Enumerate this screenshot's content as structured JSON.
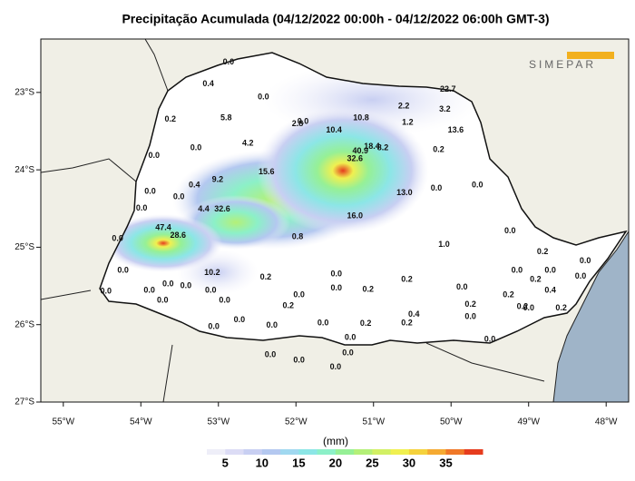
{
  "title": "Precipitação Acumulada (04/12/2022 00:00h - 04/12/2022 06:00h GMT-3)",
  "logo": "SIMEPAR",
  "map": {
    "xlim": [
      -55.29,
      -47.71
    ],
    "ylim": [
      -27,
      -22.31
    ],
    "xticks": [
      {
        "value": -55,
        "label": "55°W"
      },
      {
        "value": -54,
        "label": "54°W"
      },
      {
        "value": -53,
        "label": "53°W"
      },
      {
        "value": -52,
        "label": "52°W"
      },
      {
        "value": -51,
        "label": "51°W"
      },
      {
        "value": -50,
        "label": "50°W"
      },
      {
        "value": -49,
        "label": "49°W"
      },
      {
        "value": -48,
        "label": "48°W"
      }
    ],
    "yticks": [
      {
        "value": -23,
        "label": "23°S"
      },
      {
        "value": -24,
        "label": "24°S"
      },
      {
        "value": -25,
        "label": "25°S"
      },
      {
        "value": -26,
        "label": "26°S"
      },
      {
        "value": -27,
        "label": "27°S"
      }
    ],
    "stations": [
      {
        "lon": -52.87,
        "lat": -22.61,
        "label": "0.0"
      },
      {
        "lon": -53.13,
        "lat": -22.89,
        "label": "0.4"
      },
      {
        "lon": -52.42,
        "lat": -23.06,
        "label": "0.0"
      },
      {
        "lon": -50.04,
        "lat": -22.96,
        "label": "22.7"
      },
      {
        "lon": -50.61,
        "lat": -23.18,
        "label": "2.2"
      },
      {
        "lon": -50.08,
        "lat": -23.22,
        "label": "3.2"
      },
      {
        "lon": -53.62,
        "lat": -23.35,
        "label": "0.2"
      },
      {
        "lon": -52.9,
        "lat": -23.33,
        "label": "5.8"
      },
      {
        "lon": -51.98,
        "lat": -23.41,
        "label": "2.8"
      },
      {
        "lon": -51.91,
        "lat": -23.38,
        "label": "0.0"
      },
      {
        "lon": -51.16,
        "lat": -23.33,
        "label": "10.8"
      },
      {
        "lon": -50.56,
        "lat": -23.39,
        "label": "1.2"
      },
      {
        "lon": -51.51,
        "lat": -23.49,
        "label": "10.4"
      },
      {
        "lon": -49.94,
        "lat": -23.49,
        "label": "13.6"
      },
      {
        "lon": -53.29,
        "lat": -23.72,
        "label": "0.0"
      },
      {
        "lon": -52.62,
        "lat": -23.66,
        "label": "4.2"
      },
      {
        "lon": -51.02,
        "lat": -23.7,
        "label": "18.4"
      },
      {
        "lon": -50.88,
        "lat": -23.72,
        "label": "8.2"
      },
      {
        "lon": -51.17,
        "lat": -23.76,
        "label": "40.9"
      },
      {
        "lon": -50.16,
        "lat": -23.74,
        "label": "0.2"
      },
      {
        "lon": -51.24,
        "lat": -23.86,
        "label": "32.6"
      },
      {
        "lon": -53.83,
        "lat": -23.82,
        "label": "0.0"
      },
      {
        "lon": -52.38,
        "lat": -24.03,
        "label": "15.6"
      },
      {
        "lon": -53.01,
        "lat": -24.13,
        "label": "9.2"
      },
      {
        "lon": -53.31,
        "lat": -24.2,
        "label": "0.4"
      },
      {
        "lon": -50.6,
        "lat": -24.3,
        "label": "13.0"
      },
      {
        "lon": -50.19,
        "lat": -24.24,
        "label": "0.0"
      },
      {
        "lon": -49.66,
        "lat": -24.2,
        "label": "0.0"
      },
      {
        "lon": -53.88,
        "lat": -24.28,
        "label": "0.0"
      },
      {
        "lon": -53.51,
        "lat": -24.35,
        "label": "0.0"
      },
      {
        "lon": -53.19,
        "lat": -24.51,
        "label": "4.4"
      },
      {
        "lon": -52.95,
        "lat": -24.51,
        "label": "32.6"
      },
      {
        "lon": -53.99,
        "lat": -24.5,
        "label": "0.0"
      },
      {
        "lon": -51.24,
        "lat": -24.6,
        "label": "16.0"
      },
      {
        "lon": -53.71,
        "lat": -24.75,
        "label": "47.4"
      },
      {
        "lon": -53.52,
        "lat": -24.85,
        "label": "28.6"
      },
      {
        "lon": -54.3,
        "lat": -24.89,
        "label": "0.0"
      },
      {
        "lon": -51.98,
        "lat": -24.87,
        "label": "0.8"
      },
      {
        "lon": -49.24,
        "lat": -24.79,
        "label": "0.0"
      },
      {
        "lon": -50.09,
        "lat": -24.97,
        "label": "1.0"
      },
      {
        "lon": -54.23,
        "lat": -25.3,
        "label": "0.0"
      },
      {
        "lon": -53.08,
        "lat": -25.33,
        "label": "10.2"
      },
      {
        "lon": -52.39,
        "lat": -25.39,
        "label": "0.2"
      },
      {
        "lon": -51.48,
        "lat": -25.35,
        "label": "0.0"
      },
      {
        "lon": -50.57,
        "lat": -25.42,
        "label": "0.2"
      },
      {
        "lon": -54.45,
        "lat": -25.57,
        "label": "0.0"
      },
      {
        "lon": -53.89,
        "lat": -25.56,
        "label": "0.0"
      },
      {
        "lon": -53.65,
        "lat": -25.48,
        "label": "0.0"
      },
      {
        "lon": -53.42,
        "lat": -25.5,
        "label": "0.0"
      },
      {
        "lon": -53.1,
        "lat": -25.56,
        "label": "0.0"
      },
      {
        "lon": -53.72,
        "lat": -25.69,
        "label": "0.0"
      },
      {
        "lon": -52.92,
        "lat": -25.69,
        "label": "0.0"
      },
      {
        "lon": -51.96,
        "lat": -25.62,
        "label": "0.0"
      },
      {
        "lon": -51.07,
        "lat": -25.55,
        "label": "0.2"
      },
      {
        "lon": -51.48,
        "lat": -25.53,
        "label": "0.0"
      },
      {
        "lon": -52.1,
        "lat": -25.76,
        "label": "0.2"
      },
      {
        "lon": -53.06,
        "lat": -26.03,
        "label": "0.0"
      },
      {
        "lon": -52.73,
        "lat": -25.94,
        "label": "0.0"
      },
      {
        "lon": -52.31,
        "lat": -26.01,
        "label": "0.0"
      },
      {
        "lon": -51.65,
        "lat": -25.98,
        "label": "0.0"
      },
      {
        "lon": -51.1,
        "lat": -25.99,
        "label": "0.2"
      },
      {
        "lon": -51.3,
        "lat": -26.17,
        "label": "0.0"
      },
      {
        "lon": -50.57,
        "lat": -25.98,
        "label": "0.2"
      },
      {
        "lon": -50.48,
        "lat": -25.87,
        "label": "0.4"
      },
      {
        "lon": -49.75,
        "lat": -25.9,
        "label": "0.0"
      },
      {
        "lon": -49.75,
        "lat": -25.74,
        "label": "0.2"
      },
      {
        "lon": -49.86,
        "lat": -25.52,
        "label": "0.0"
      },
      {
        "lon": -49.26,
        "lat": -25.62,
        "label": "0.2"
      },
      {
        "lon": -52.33,
        "lat": -26.39,
        "label": "0.0"
      },
      {
        "lon": -51.96,
        "lat": -26.46,
        "label": "0.0"
      },
      {
        "lon": -51.33,
        "lat": -26.37,
        "label": "0.0"
      },
      {
        "lon": -51.49,
        "lat": -26.55,
        "label": "0.0"
      },
      {
        "lon": -49.5,
        "lat": -26.19,
        "label": "0.0"
      },
      {
        "lon": -49.08,
        "lat": -25.77,
        "label": "0.2"
      },
      {
        "lon": -48.82,
        "lat": -25.06,
        "label": "0.2"
      },
      {
        "lon": -49.15,
        "lat": -25.3,
        "label": "0.0"
      },
      {
        "lon": -48.91,
        "lat": -25.42,
        "label": "0.2"
      },
      {
        "lon": -48.72,
        "lat": -25.3,
        "label": "0.0"
      },
      {
        "lon": -48.58,
        "lat": -25.79,
        "label": "0.2"
      },
      {
        "lon": -48.27,
        "lat": -25.18,
        "label": "0.0"
      },
      {
        "lon": -48.33,
        "lat": -25.38,
        "label": "0.0"
      },
      {
        "lon": -48.72,
        "lat": -25.56,
        "label": "0.4"
      },
      {
        "lon": -49.0,
        "lat": -25.79,
        "label": "0.0"
      }
    ]
  },
  "colorbar": {
    "label": "(mm)",
    "lim": [
      2.5,
      40
    ],
    "ticks": [
      5,
      10,
      15,
      20,
      25,
      30,
      35
    ],
    "colors": [
      "#eeeef8",
      "#dcdcf5",
      "#c8cff2",
      "#b4c8f0",
      "#a0d8f0",
      "#8ce6e6",
      "#8cf0c8",
      "#96f096",
      "#b4f078",
      "#d2f064",
      "#f0f050",
      "#f5d23c",
      "#f5aa32",
      "#f07828",
      "#e63c1e"
    ]
  }
}
